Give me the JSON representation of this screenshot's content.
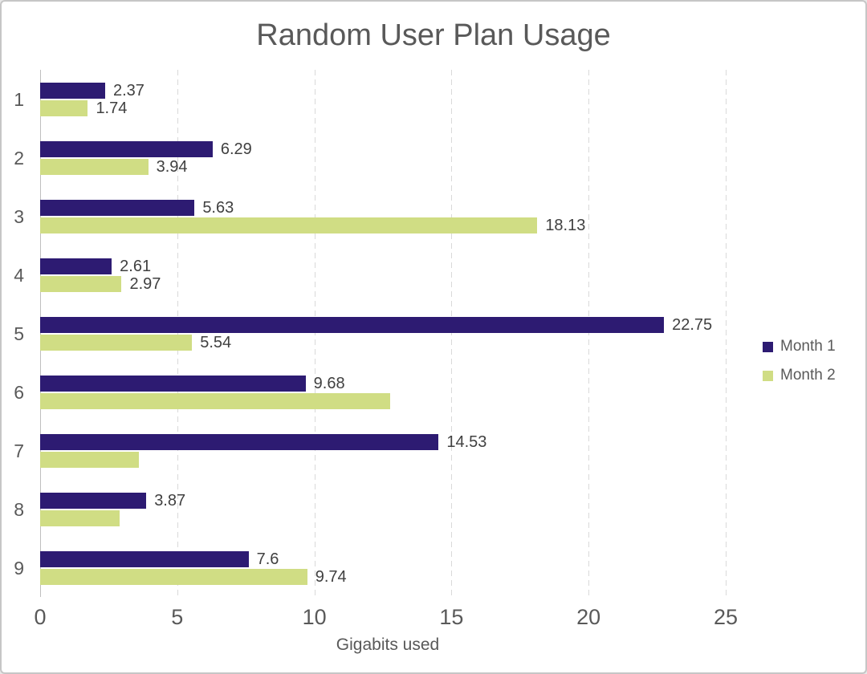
{
  "window": {
    "background": "#ffffff",
    "border_color": "#c6c6c6"
  },
  "chart_data": {
    "type": "bar",
    "orientation": "horizontal",
    "title": "Random User Plan Usage",
    "xlabel": "Gigabits used",
    "ylabel": "",
    "categories": [
      "1",
      "2",
      "3",
      "4",
      "5",
      "6",
      "7",
      "8",
      "9"
    ],
    "series": [
      {
        "name": "Month 1",
        "color": "#2d1b72",
        "values": [
          2.37,
          6.29,
          5.63,
          2.61,
          22.75,
          9.68,
          14.53,
          3.87,
          7.6
        ],
        "data_labels": [
          "2.37",
          "6.29",
          "5.63",
          "2.61",
          "22.75",
          "9.68",
          "14.53",
          "3.87",
          "7.6"
        ]
      },
      {
        "name": "Month 2",
        "color": "#d0dd84",
        "values": [
          1.74,
          3.94,
          18.13,
          2.97,
          5.54,
          12.76,
          3.6,
          2.9,
          9.74
        ],
        "data_labels": [
          "1.74",
          "3.94",
          "18.13",
          "2.97",
          "5.54",
          "",
          "",
          "",
          "9.74"
        ]
      }
    ],
    "x_ticks": [
      "0",
      "5",
      "10",
      "15",
      "20",
      "25"
    ],
    "x_tick_values": [
      0,
      5,
      10,
      15,
      20,
      25
    ],
    "xlim": [
      0,
      25
    ],
    "grid": "vertical-dashed",
    "legend_position": "right",
    "colors": {
      "title_text": "#595959",
      "axis_text": "#595959",
      "data_label_text": "#404040",
      "gridline": "#d9d9d9",
      "axis_line": "#bfbfbf"
    }
  }
}
